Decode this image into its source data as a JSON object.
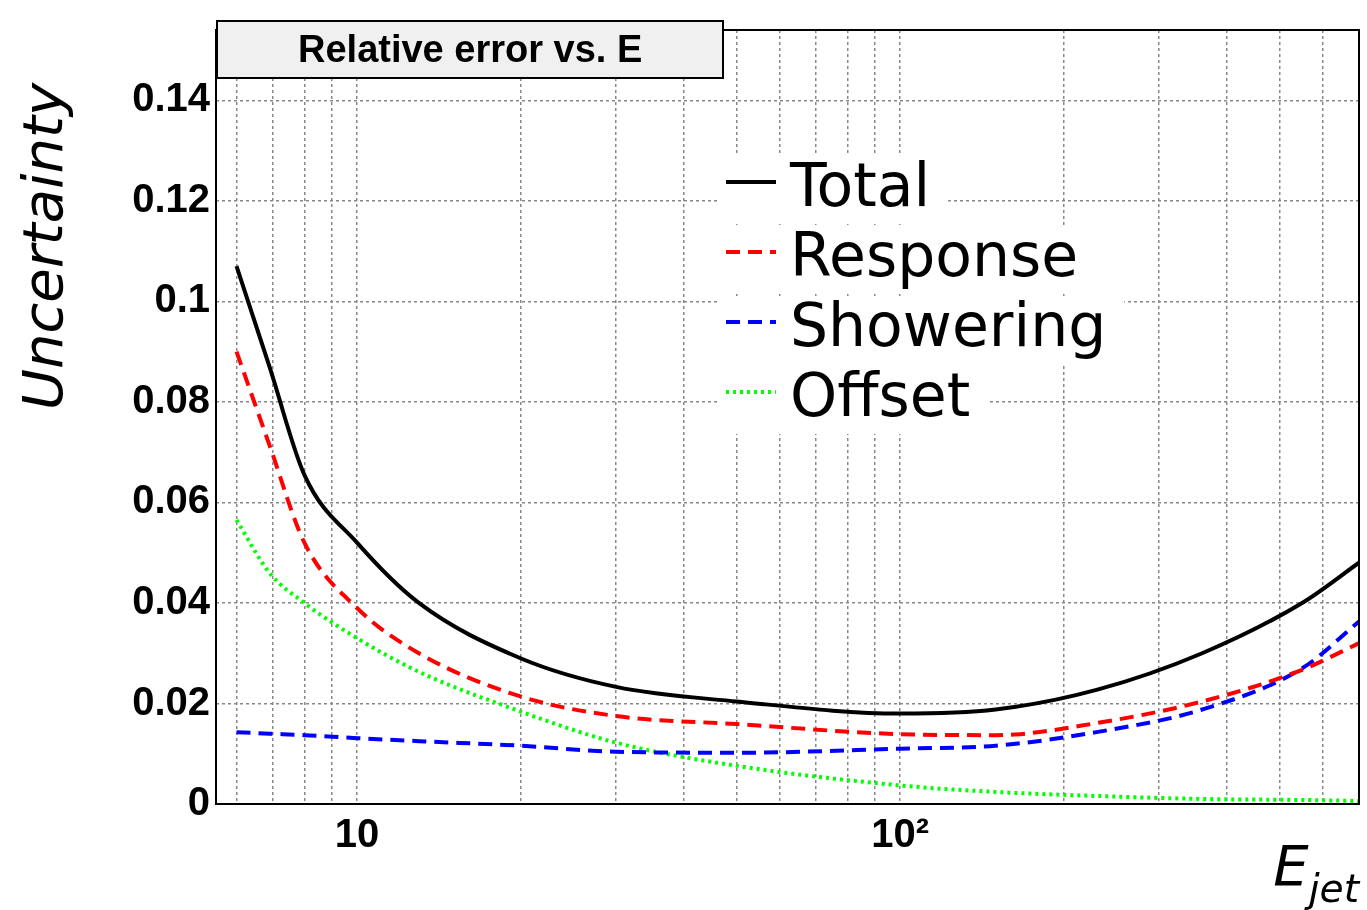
{
  "chart_data": {
    "type": "line",
    "title": "Relative error vs. E",
    "xlabel": "E$_{jet}$",
    "ylabel": "Uncertainty",
    "log": "x",
    "x": [
      6,
      6.9,
      8,
      10,
      13,
      20,
      30,
      50,
      100,
      150,
      230,
      360,
      550,
      700
    ],
    "series": [
      {
        "name": "Total",
        "color": "#000000",
        "line_style": "solid",
        "values": [
          0.107,
          0.087,
          0.0655,
          0.052,
          0.04,
          0.029,
          0.0233,
          0.0204,
          0.018,
          0.0188,
          0.0227,
          0.03,
          0.04,
          0.048
        ]
      },
      {
        "name": "Response",
        "color": "#ff0000",
        "line_style": "dashed",
        "values": [
          0.09,
          0.0714,
          0.052,
          0.039,
          0.03,
          0.0214,
          0.0175,
          0.0159,
          0.0139,
          0.0137,
          0.0161,
          0.0204,
          0.0267,
          0.032
        ]
      },
      {
        "name": "Showering",
        "color": "#0000ff",
        "line_style": "dashed",
        "values": [
          0.0143,
          0.014,
          0.0137,
          0.0131,
          0.0125,
          0.0116,
          0.0104,
          0.0102,
          0.011,
          0.0116,
          0.0143,
          0.0188,
          0.027,
          0.0363
        ]
      },
      {
        "name": "Offset",
        "color": "#00ff00",
        "line_style": "dotted",
        "values": [
          0.0565,
          0.046,
          0.04,
          0.033,
          0.0263,
          0.0184,
          0.0122,
          0.0076,
          0.0037,
          0.0024,
          0.0016,
          0.001,
          0.0008,
          0.0006
        ]
      }
    ],
    "xlim": [
      5.5,
      700
    ],
    "xticks": [
      {
        "value": 6,
        "label": null
      },
      {
        "value": 7,
        "label": null
      },
      {
        "value": 8,
        "label": null
      },
      {
        "value": 9,
        "label": null
      },
      10,
      {
        "value": 20,
        "label": null
      },
      {
        "value": 30,
        "label": null
      },
      {
        "value": 40,
        "label": null
      },
      {
        "value": 50,
        "label": null
      },
      {
        "value": 60,
        "label": null
      },
      {
        "value": 70,
        "label": null
      },
      {
        "value": 80,
        "label": null
      },
      {
        "value": 90,
        "label": null
      },
      {
        "value": 100,
        "label": "10²"
      },
      {
        "value": 200,
        "label": null
      },
      {
        "value": 300,
        "label": null
      },
      {
        "value": 400,
        "label": null
      },
      {
        "value": 500,
        "label": null
      },
      {
        "value": 600,
        "label": null
      },
      {
        "value": 700,
        "label": null
      }
    ],
    "ylim": [
      0,
      0.154
    ],
    "yticks": [
      0,
      0.02,
      0.04,
      0.06,
      0.08,
      0.1,
      0.12,
      0.14
    ],
    "grid": true,
    "legend": "top right",
    "marker": "none"
  }
}
